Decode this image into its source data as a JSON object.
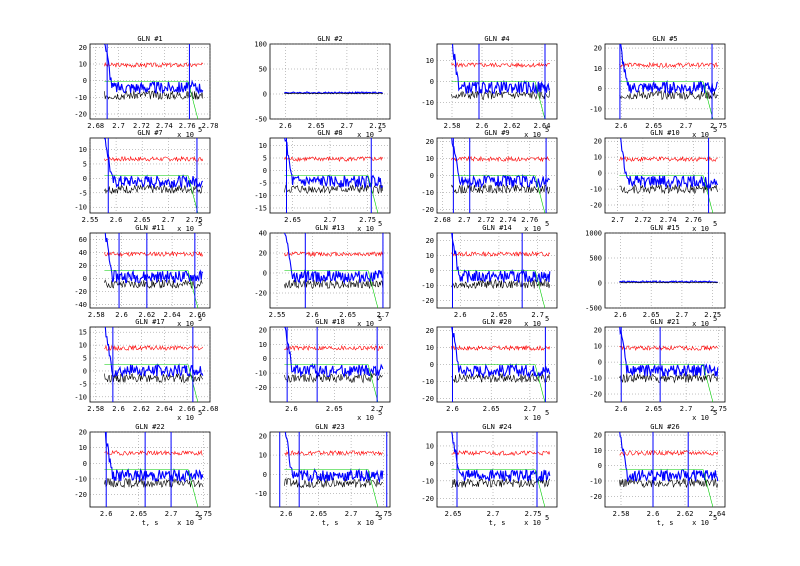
{
  "chart_data": [
    {
      "type": "line",
      "title": "GLN #1",
      "xticks": [
        "2.68",
        "2.7",
        "2.72",
        "2.74",
        "2.76",
        "2.78"
      ],
      "yticks": [
        "20",
        "10",
        "0",
        "-10",
        "-20"
      ],
      "xlim": [
        2.675,
        2.78
      ],
      "ylim": [
        -23,
        22
      ],
      "x_multiplier": "x 10",
      "x_exponent": "5",
      "xlabel": "",
      "series_colors": [
        "#0000ff",
        "#ff0000",
        "#000000",
        "#00cc00"
      ],
      "verticals": [
        2.69,
        2.762
      ]
    },
    {
      "type": "line",
      "title": "GLN #2",
      "xticks": [
        "2.6",
        "2.65",
        "2.7",
        "2.75"
      ],
      "yticks": [
        "100",
        "50",
        "0",
        "-50"
      ],
      "xlim": [
        2.575,
        2.77
      ],
      "ylim": [
        -50,
        100
      ],
      "x_multiplier": "x 10",
      "x_exponent": "5",
      "xlabel": "",
      "series_colors": [
        "#0000ff",
        "#ff0000",
        "#000000",
        "#00cc00"
      ],
      "verticals": []
    },
    {
      "type": "line",
      "title": "GLN #4",
      "xticks": [
        "2.58",
        "2.6",
        "2.62",
        "2.64"
      ],
      "yticks": [
        "10",
        "0",
        "-10"
      ],
      "xlim": [
        2.57,
        2.65
      ],
      "ylim": [
        -18,
        18
      ],
      "x_multiplier": "x 10",
      "x_exponent": "5",
      "xlabel": "",
      "series_colors": [
        "#0000ff",
        "#ff0000",
        "#000000",
        "#00cc00"
      ],
      "verticals": [
        2.598,
        2.642
      ]
    },
    {
      "type": "line",
      "title": "GLN #5",
      "xticks": [
        "2.6",
        "2.65",
        "2.7",
        "2.75"
      ],
      "yticks": [
        "20",
        "10",
        "0",
        "-10"
      ],
      "xlim": [
        2.575,
        2.76
      ],
      "ylim": [
        -15,
        22
      ],
      "x_multiplier": "x 10",
      "x_exponent": "5",
      "xlabel": "",
      "series_colors": [
        "#0000ff",
        "#ff0000",
        "#000000",
        "#00cc00"
      ],
      "verticals": [
        2.598,
        2.74
      ]
    },
    {
      "type": "line",
      "title": "GLN #7",
      "xticks": [
        "2.55",
        "2.6",
        "2.65",
        "2.7",
        "2.75"
      ],
      "yticks": [
        "10",
        "5",
        "0",
        "-5",
        "-10"
      ],
      "xlim": [
        2.55,
        2.78
      ],
      "ylim": [
        -12,
        14
      ],
      "x_multiplier": "x 10",
      "x_exponent": "5",
      "xlabel": "",
      "series_colors": [
        "#0000ff",
        "#ff0000",
        "#000000",
        "#00cc00"
      ],
      "verticals": [
        2.585,
        2.755
      ]
    },
    {
      "type": "line",
      "title": "GLN #8",
      "xticks": [
        "2.65",
        "2.7",
        "2.75"
      ],
      "yticks": [
        "10",
        "5",
        "0",
        "-5",
        "-10",
        "-15"
      ],
      "xlim": [
        2.62,
        2.78
      ],
      "ylim": [
        -17,
        13
      ],
      "x_multiplier": "x 10",
      "x_exponent": "5",
      "xlabel": "",
      "series_colors": [
        "#0000ff",
        "#ff0000",
        "#000000",
        "#00cc00"
      ],
      "verticals": [
        2.642,
        2.755
      ]
    },
    {
      "type": "line",
      "title": "GLN #9",
      "xticks": [
        "2.68",
        "2.7",
        "2.72",
        "2.74",
        "2.76"
      ],
      "yticks": [
        "20",
        "10",
        "0",
        "-10",
        "-20"
      ],
      "xlim": [
        2.675,
        2.785
      ],
      "ylim": [
        -22,
        22
      ],
      "x_multiplier": "x 10",
      "x_exponent": "5",
      "xlabel": "",
      "series_colors": [
        "#0000ff",
        "#ff0000",
        "#000000",
        "#00cc00"
      ],
      "verticals": [
        2.69,
        2.705,
        2.775
      ]
    },
    {
      "type": "line",
      "title": "GLN #10",
      "xticks": [
        "2.7",
        "2.72",
        "2.74",
        "2.76"
      ],
      "yticks": [
        "20",
        "10",
        "0",
        "-10",
        "-20"
      ],
      "xlim": [
        2.69,
        2.785
      ],
      "ylim": [
        -25,
        22
      ],
      "x_multiplier": "x 10",
      "x_exponent": "5",
      "xlabel": "",
      "series_colors": [
        "#0000ff",
        "#ff0000",
        "#000000",
        "#00cc00"
      ],
      "verticals": [
        2.772
      ]
    },
    {
      "type": "line",
      "title": "GLN #11",
      "xticks": [
        "2.58",
        "2.6",
        "2.62",
        "2.64",
        "2.66"
      ],
      "yticks": [
        "60",
        "40",
        "20",
        "0",
        "-20",
        "-40"
      ],
      "xlim": [
        2.575,
        2.67
      ],
      "ylim": [
        -45,
        70
      ],
      "x_multiplier": "x 10",
      "x_exponent": "5",
      "xlabel": "",
      "series_colors": [
        "#0000ff",
        "#ff0000",
        "#000000",
        "#00cc00"
      ],
      "verticals": [
        2.598,
        2.62,
        2.658
      ]
    },
    {
      "type": "line",
      "title": "GLN #13",
      "xticks": [
        "2.55",
        "2.6",
        "2.65",
        "2.7"
      ],
      "yticks": [
        "40",
        "20",
        "0",
        "-20"
      ],
      "xlim": [
        2.54,
        2.71
      ],
      "ylim": [
        -35,
        40
      ],
      "x_multiplier": "x 10",
      "x_exponent": "5",
      "xlabel": "",
      "series_colors": [
        "#0000ff",
        "#ff0000",
        "#000000",
        "#00cc00"
      ],
      "verticals": [
        2.59,
        2.7
      ]
    },
    {
      "type": "line",
      "title": "GLN #14",
      "xticks": [
        "2.6",
        "2.65",
        "2.7"
      ],
      "yticks": [
        "20",
        "10",
        "0",
        "-10",
        "-20"
      ],
      "xlim": [
        2.57,
        2.725
      ],
      "ylim": [
        -25,
        25
      ],
      "x_multiplier": "x 10",
      "x_exponent": "5",
      "xlabel": "",
      "series_colors": [
        "#0000ff",
        "#ff0000",
        "#000000",
        "#00cc00"
      ],
      "verticals": [
        2.59,
        2.68
      ]
    },
    {
      "type": "line",
      "title": "GLN #15",
      "xticks": [
        "2.6",
        "2.65",
        "2.7",
        "2.75"
      ],
      "yticks": [
        "1000",
        "500",
        "0",
        "-500"
      ],
      "xlim": [
        2.575,
        2.77
      ],
      "ylim": [
        -500,
        1000
      ],
      "x_multiplier": "x 10",
      "x_exponent": "5",
      "xlabel": "",
      "series_colors": [
        "#0000ff",
        "#ff0000",
        "#000000",
        "#00cc00"
      ],
      "verticals": []
    },
    {
      "type": "line",
      "title": "GLN #17",
      "xticks": [
        "2.58",
        "2.6",
        "2.62",
        "2.64",
        "2.66",
        "2.68"
      ],
      "yticks": [
        "15",
        "10",
        "5",
        "0",
        "-5",
        "-10"
      ],
      "xlim": [
        2.575,
        2.68
      ],
      "ylim": [
        -12,
        17
      ],
      "x_multiplier": "x 10",
      "x_exponent": "5",
      "xlabel": "",
      "series_colors": [
        "#0000ff",
        "#ff0000",
        "#000000",
        "#00cc00"
      ],
      "verticals": [
        2.595,
        2.665
      ]
    },
    {
      "type": "line",
      "title": "GLN #18",
      "xticks": [
        "2.6",
        "2.65",
        "2.7"
      ],
      "yticks": [
        "20",
        "10",
        "0",
        "-10",
        "-20"
      ],
      "xlim": [
        2.575,
        2.715
      ],
      "ylim": [
        -30,
        22
      ],
      "x_multiplier": "x 10",
      "x_exponent": "5",
      "xlabel": "",
      "series_colors": [
        "#0000ff",
        "#ff0000",
        "#000000",
        "#00cc00"
      ],
      "verticals": [
        2.595,
        2.63,
        2.7
      ]
    },
    {
      "type": "line",
      "title": "GLN #20",
      "xticks": [
        "2.6",
        "2.65",
        "2.7"
      ],
      "yticks": [
        "20",
        "10",
        "0",
        "-10",
        "-20"
      ],
      "xlim": [
        2.58,
        2.735
      ],
      "ylim": [
        -22,
        22
      ],
      "x_multiplier": "x 10",
      "x_exponent": "5",
      "xlabel": "",
      "series_colors": [
        "#0000ff",
        "#ff0000",
        "#000000",
        "#00cc00"
      ],
      "verticals": [
        2.6,
        2.72
      ]
    },
    {
      "type": "line",
      "title": "GLN #21",
      "xticks": [
        "2.6",
        "2.65",
        "2.7",
        "2.75"
      ],
      "yticks": [
        "20",
        "10",
        "0",
        "-10",
        "-20"
      ],
      "xlim": [
        2.575,
        2.76
      ],
      "ylim": [
        -25,
        22
      ],
      "x_multiplier": "x 10",
      "x_exponent": "5",
      "xlabel": "",
      "series_colors": [
        "#0000ff",
        "#ff0000",
        "#000000",
        "#00cc00"
      ],
      "verticals": [
        2.6,
        2.66
      ]
    },
    {
      "type": "line",
      "title": "GLN #22",
      "xticks": [
        "2.6",
        "2.65",
        "2.7",
        "2.75"
      ],
      "yticks": [
        "20",
        "10",
        "0",
        "-10",
        "-20"
      ],
      "xlim": [
        2.575,
        2.76
      ],
      "ylim": [
        -28,
        20
      ],
      "x_multiplier": "x 10",
      "x_exponent": "5",
      "xlabel": "t, s",
      "series_colors": [
        "#0000ff",
        "#ff0000",
        "#000000",
        "#00cc00"
      ],
      "verticals": [
        2.6,
        2.66,
        2.7
      ]
    },
    {
      "type": "line",
      "title": "GLN #23",
      "xticks": [
        "2.6",
        "2.65",
        "2.7",
        "2.75"
      ],
      "yticks": [
        "20",
        "10",
        "0",
        "-10"
      ],
      "xlim": [
        2.575,
        2.76
      ],
      "ylim": [
        -17,
        22
      ],
      "x_multiplier": "x 10",
      "x_exponent": "5",
      "xlabel": "t, s",
      "series_colors": [
        "#0000ff",
        "#ff0000",
        "#000000",
        "#00cc00"
      ],
      "verticals": [
        2.59,
        2.62,
        2.755
      ]
    },
    {
      "type": "line",
      "title": "GLN #24",
      "xticks": [
        "2.65",
        "2.7",
        "2.75"
      ],
      "yticks": [
        "10",
        "0",
        "-10",
        "-20"
      ],
      "xlim": [
        2.63,
        2.78
      ],
      "ylim": [
        -25,
        18
      ],
      "x_multiplier": "x 10",
      "x_exponent": "5",
      "xlabel": "t, s",
      "series_colors": [
        "#0000ff",
        "#ff0000",
        "#000000",
        "#00cc00"
      ],
      "verticals": [
        2.655,
        2.755
      ]
    },
    {
      "type": "line",
      "title": "GLN #26",
      "xticks": [
        "2.58",
        "2.6",
        "2.62",
        "2.64"
      ],
      "yticks": [
        "20",
        "10",
        "0",
        "-10",
        "-20"
      ],
      "xlim": [
        2.57,
        2.645
      ],
      "ylim": [
        -27,
        22
      ],
      "x_multiplier": "x 10",
      "x_exponent": "5",
      "xlabel": "t, s",
      "series_colors": [
        "#0000ff",
        "#ff0000",
        "#000000",
        "#00cc00"
      ],
      "verticals": [
        2.6,
        2.622
      ]
    }
  ]
}
